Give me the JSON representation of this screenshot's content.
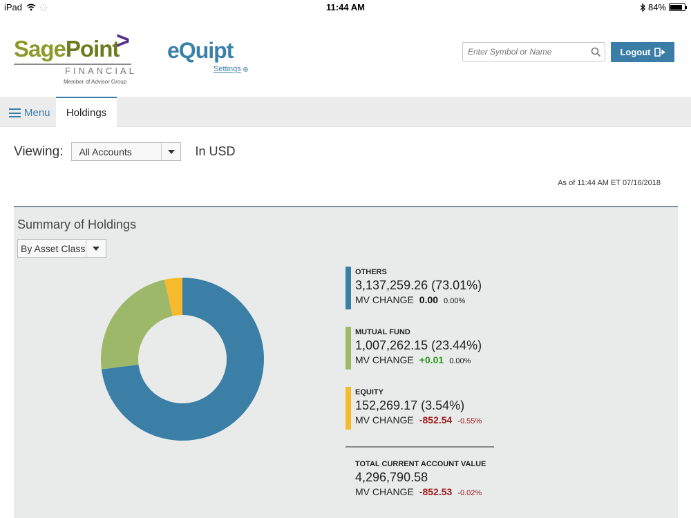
{
  "status_bar": {
    "device": "iPad",
    "time": "11:44 AM",
    "battery": "84%"
  },
  "header": {
    "brand_part1": "Sage",
    "brand_part2": "Point",
    "brand_sub": "FINANCIAL",
    "brand_member": "Member of Advisor Group",
    "app_name": "eQuipt",
    "settings_label": "Settings",
    "search_placeholder": "Enter Symbol or Name",
    "logout_label": "Logout"
  },
  "nav": {
    "menu_label": "Menu",
    "active_tab": "Holdings"
  },
  "viewing": {
    "label": "Viewing:",
    "selected": "All Accounts",
    "currency": "In USD"
  },
  "as_of": "As of 11:44 AM ET 07/16/2018",
  "summary": {
    "title": "Summary of Holdings",
    "group_by": "By Asset Class",
    "items": [
      {
        "category": "OTHERS",
        "amount": "3,137,259.26 (73.01%)",
        "mv_label": "MV CHANGE",
        "mv_change": "0.00",
        "mv_pct": "0.00%",
        "color": "#3c7fa6"
      },
      {
        "category": "MUTUAL FUND",
        "amount": "1,007,262.15 (23.44%)",
        "mv_label": "MV CHANGE",
        "mv_change": "+0.01",
        "mv_pct": "0.00%",
        "color": "#9db868"
      },
      {
        "category": "EQUITY",
        "amount": "152,269.17 (3.54%)",
        "mv_label": "MV CHANGE",
        "mv_change": "-852.54",
        "mv_pct": "-0.55%",
        "color": "#f6bb2d"
      }
    ],
    "total": {
      "label": "TOTAL CURRENT ACCOUNT VALUE",
      "amount": "4,296,790.58",
      "mv_label": "MV CHANGE",
      "mv_change": "-852.53",
      "mv_pct": "-0.02%"
    }
  },
  "chart_data": {
    "type": "pie",
    "categories": [
      "OTHERS",
      "MUTUAL FUND",
      "EQUITY"
    ],
    "values": [
      73.01,
      23.44,
      3.54
    ],
    "colors": [
      "#3c7fa6",
      "#9db868",
      "#f6bb2d"
    ]
  }
}
